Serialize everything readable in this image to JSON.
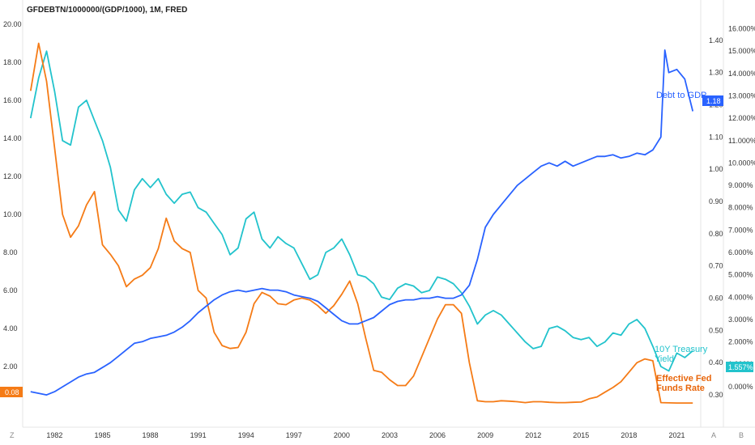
{
  "chart_data": {
    "type": "line",
    "title": "GFDEBTN/1000000/(GDP/1000), 1M, FRED",
    "x_ticks": [
      "1982",
      "1985",
      "1988",
      "1991",
      "1994",
      "1997",
      "2000",
      "2003",
      "2006",
      "2009",
      "2012",
      "2015",
      "2018",
      "2021"
    ],
    "left_axis": {
      "ticks": [
        "20.00",
        "18.00",
        "16.00",
        "14.00",
        "12.00",
        "10.00",
        "8.00",
        "6.00",
        "4.00",
        "2.00"
      ],
      "ylim": [
        0,
        20
      ]
    },
    "middle_axis": {
      "ticks": [
        "1.40",
        "1.30",
        "1.20",
        "1.10",
        "1.00",
        "0.90",
        "0.80",
        "0.70",
        "0.60",
        "0.50",
        "0.40",
        "0.30"
      ],
      "ylim": [
        0.27,
        1.45
      ]
    },
    "right_axis": {
      "ticks": [
        "16.000%",
        "15.000%",
        "14.000%",
        "13.000%",
        "12.000%",
        "11.000%",
        "10.000%",
        "9.000%",
        "8.000%",
        "7.000%",
        "6.000%",
        "5.000%",
        "4.000%",
        "3.000%",
        "2.000%",
        "1.000%",
        "0.000%"
      ],
      "ylim": [
        -0.8,
        16.2
      ]
    },
    "series": [
      {
        "name": "Debt to GDP",
        "color": "#2962ff",
        "axis": "middle",
        "x": [
          1980.5,
          1981,
          1981.5,
          1982,
          1982.5,
          1983,
          1983.5,
          1984,
          1984.5,
          1985,
          1985.5,
          1986,
          1986.5,
          1987,
          1987.5,
          1988,
          1988.5,
          1989,
          1989.5,
          1990,
          1990.5,
          1991,
          1991.5,
          1992,
          1992.5,
          1993,
          1993.5,
          1994,
          1994.5,
          1995,
          1995.5,
          1996,
          1996.5,
          1997,
          1997.5,
          1998,
          1998.5,
          1999,
          1999.5,
          2000,
          2000.5,
          2001,
          2001.5,
          2002,
          2002.5,
          2003,
          2003.5,
          2004,
          2004.5,
          2005,
          2005.5,
          2006,
          2006.5,
          2007,
          2007.5,
          2008,
          2008.5,
          2009,
          2009.5,
          2010,
          2010.5,
          2011,
          2011.5,
          2012,
          2012.5,
          2013,
          2013.5,
          2014,
          2014.5,
          2015,
          2015.5,
          2016,
          2016.5,
          2017,
          2017.5,
          2018,
          2018.5,
          2019,
          2019.5,
          2020,
          2020.25,
          2020.5,
          2021,
          2021.5,
          2022
        ],
        "values": [
          0.31,
          0.305,
          0.3,
          0.31,
          0.325,
          0.34,
          0.355,
          0.365,
          0.37,
          0.385,
          0.4,
          0.42,
          0.44,
          0.46,
          0.465,
          0.475,
          0.48,
          0.485,
          0.495,
          0.51,
          0.53,
          0.555,
          0.575,
          0.595,
          0.61,
          0.62,
          0.625,
          0.62,
          0.625,
          0.63,
          0.625,
          0.625,
          0.62,
          0.61,
          0.605,
          0.6,
          0.59,
          0.57,
          0.55,
          0.53,
          0.52,
          0.52,
          0.53,
          0.54,
          0.56,
          0.58,
          0.59,
          0.595,
          0.595,
          0.6,
          0.6,
          0.605,
          0.6,
          0.6,
          0.61,
          0.64,
          0.72,
          0.82,
          0.86,
          0.89,
          0.92,
          0.95,
          0.97,
          0.99,
          1.01,
          1.02,
          1.01,
          1.025,
          1.01,
          1.02,
          1.03,
          1.04,
          1.04,
          1.045,
          1.035,
          1.04,
          1.05,
          1.045,
          1.06,
          1.1,
          1.37,
          1.3,
          1.31,
          1.28,
          1.18
        ]
      },
      {
        "name": "10Y Treasury Yield",
        "color": "#22c3cc",
        "axis": "right",
        "x": [
          1980.5,
          1981,
          1981.5,
          1982,
          1982.5,
          1983,
          1983.5,
          1984,
          1984.5,
          1985,
          1985.5,
          1986,
          1986.5,
          1987,
          1987.5,
          1988,
          1988.5,
          1989,
          1989.5,
          1990,
          1990.5,
          1991,
          1991.5,
          1992,
          1992.5,
          1993,
          1993.5,
          1994,
          1994.5,
          1995,
          1995.5,
          1996,
          1996.5,
          1997,
          1997.5,
          1998,
          1998.5,
          1999,
          1999.5,
          2000,
          2000.5,
          2001,
          2001.5,
          2002,
          2002.5,
          2003,
          2003.5,
          2004,
          2004.5,
          2005,
          2005.5,
          2006,
          2006.5,
          2007,
          2007.5,
          2008,
          2008.5,
          2009,
          2009.5,
          2010,
          2010.5,
          2011,
          2011.5,
          2012,
          2012.5,
          2013,
          2013.5,
          2014,
          2014.5,
          2015,
          2015.5,
          2016,
          2016.5,
          2017,
          2017.5,
          2018,
          2018.5,
          2019,
          2019.5,
          2020,
          2020.5,
          2021,
          2021.5,
          2022
        ],
        "values": [
          12.0,
          13.8,
          15.0,
          13.2,
          11.0,
          10.8,
          12.5,
          12.8,
          11.9,
          11.0,
          9.8,
          7.9,
          7.4,
          8.8,
          9.3,
          8.9,
          9.3,
          8.6,
          8.2,
          8.6,
          8.7,
          8.0,
          7.8,
          7.3,
          6.8,
          5.9,
          6.2,
          7.5,
          7.8,
          6.6,
          6.2,
          6.7,
          6.4,
          6.2,
          5.5,
          4.8,
          5.0,
          6.0,
          6.2,
          6.6,
          5.9,
          5.0,
          4.9,
          4.6,
          4.0,
          3.9,
          4.4,
          4.6,
          4.5,
          4.2,
          4.3,
          4.9,
          4.8,
          4.6,
          4.2,
          3.6,
          2.8,
          3.2,
          3.4,
          3.2,
          2.8,
          2.4,
          2.0,
          1.7,
          1.8,
          2.6,
          2.7,
          2.5,
          2.2,
          2.1,
          2.2,
          1.8,
          2.0,
          2.4,
          2.3,
          2.8,
          3.0,
          2.6,
          1.8,
          0.9,
          0.7,
          1.5,
          1.3,
          1.6
        ]
      },
      {
        "name": "Effective Fed Funds Rate",
        "color": "#f57b16",
        "axis": "left",
        "x": [
          1980.5,
          1981,
          1981.5,
          1982,
          1982.5,
          1983,
          1983.5,
          1984,
          1984.5,
          1985,
          1985.5,
          1986,
          1986.5,
          1987,
          1987.5,
          1988,
          1988.5,
          1989,
          1989.5,
          1990,
          1990.5,
          1991,
          1991.5,
          1992,
          1992.5,
          1993,
          1993.5,
          1994,
          1994.5,
          1995,
          1995.5,
          1996,
          1996.5,
          1997,
          1997.5,
          1998,
          1998.5,
          1999,
          1999.5,
          2000,
          2000.5,
          2001,
          2001.5,
          2002,
          2002.5,
          2003,
          2003.5,
          2004,
          2004.5,
          2005,
          2005.5,
          2006,
          2006.5,
          2007,
          2007.5,
          2008,
          2008.5,
          2009,
          2009.5,
          2010,
          2010.5,
          2011,
          2011.5,
          2012,
          2012.5,
          2013,
          2013.5,
          2014,
          2014.5,
          2015,
          2015.5,
          2016,
          2016.5,
          2017,
          2017.5,
          2018,
          2018.5,
          2019,
          2019.5,
          2020,
          2020.5,
          2021,
          2021.5,
          2022
        ],
        "values": [
          16.5,
          19.0,
          17.0,
          13.5,
          10.0,
          8.8,
          9.4,
          10.5,
          11.2,
          8.4,
          7.9,
          7.3,
          6.2,
          6.6,
          6.8,
          7.2,
          8.2,
          9.8,
          8.6,
          8.2,
          8.0,
          6.0,
          5.6,
          3.8,
          3.1,
          2.95,
          3.0,
          3.8,
          5.3,
          5.9,
          5.7,
          5.3,
          5.25,
          5.5,
          5.6,
          5.5,
          5.2,
          4.8,
          5.2,
          5.8,
          6.5,
          5.3,
          3.5,
          1.8,
          1.7,
          1.3,
          1.0,
          1.0,
          1.5,
          2.5,
          3.5,
          4.5,
          5.25,
          5.25,
          4.8,
          2.2,
          0.2,
          0.15,
          0.15,
          0.2,
          0.18,
          0.15,
          0.1,
          0.15,
          0.15,
          0.12,
          0.1,
          0.1,
          0.12,
          0.13,
          0.3,
          0.4,
          0.65,
          0.9,
          1.2,
          1.7,
          2.2,
          2.4,
          2.3,
          0.1,
          0.09,
          0.08,
          0.08,
          0.08
        ]
      }
    ],
    "legend_placement": "inline labels at right end of lines",
    "grid": false
  },
  "labels": {
    "debt": "Debt to GDP",
    "yield_1": "10Y Treasury",
    "yield_2": "Yield",
    "fed_1": "Effective Fed",
    "fed_2": "Funds Rate"
  },
  "badges": {
    "left": "0.08",
    "middle": "1.18",
    "right": "1.557%"
  },
  "corners": {
    "bottom_left": "Z",
    "bottom_right_a": "A",
    "bottom_right_b": "B"
  }
}
